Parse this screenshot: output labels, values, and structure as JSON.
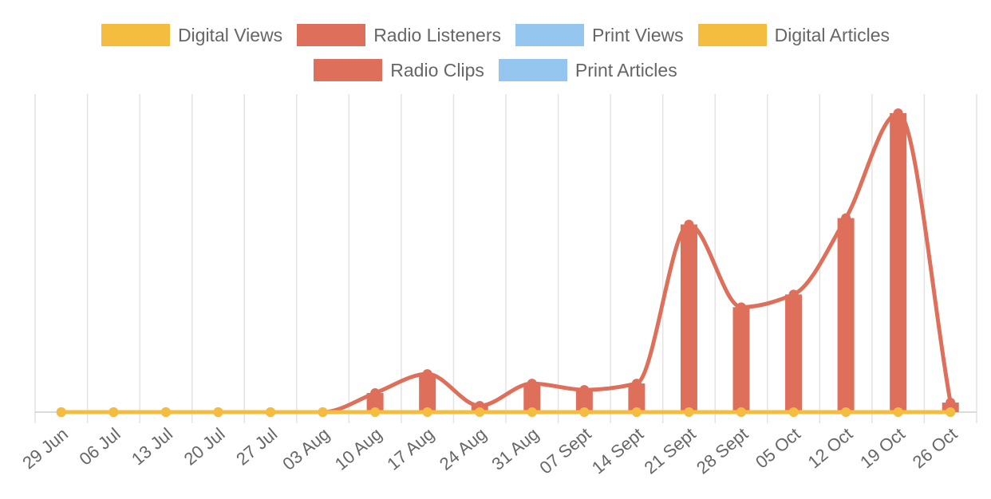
{
  "chart_data": {
    "type": "bar",
    "title": "",
    "xlabel": "",
    "ylabel": "",
    "grid": true,
    "legend_position": "top",
    "categories": [
      "29 Jun",
      "06 Jul",
      "13 Jul",
      "20 Jul",
      "27 Jul",
      "03 Aug",
      "10 Aug",
      "17 Aug",
      "24 Aug",
      "31 Aug",
      "07 Sept",
      "14 Sept",
      "21 Sept",
      "28 Sept",
      "05 Oct",
      "12 Oct",
      "19 Oct",
      "26 Oct"
    ],
    "series": [
      {
        "name": "Digital Views",
        "kind": "line",
        "color": "#f5bd3f",
        "values": [
          0,
          0,
          0,
          0,
          0,
          0,
          0,
          0,
          0,
          0,
          0,
          0,
          0,
          0,
          0,
          0,
          0,
          0
        ]
      },
      {
        "name": "Radio Listeners",
        "kind": "line",
        "color": "#de6f5b",
        "values": [
          0,
          0,
          0,
          0,
          0,
          0,
          6,
          12,
          2,
          9,
          7,
          9,
          59,
          33,
          37,
          61,
          94,
          3
        ]
      },
      {
        "name": "Print Views",
        "kind": "line",
        "color": "#94c6f0",
        "values": [
          0,
          0,
          0,
          0,
          0,
          0,
          0,
          0,
          0,
          0,
          0,
          0,
          0,
          0,
          0,
          0,
          0,
          0
        ]
      },
      {
        "name": "Digital Articles",
        "kind": "bar",
        "color": "#f5bd3f",
        "values": [
          0,
          0,
          0,
          0,
          0,
          0,
          0,
          0,
          0,
          0,
          0,
          0,
          0,
          0,
          0,
          0,
          0,
          0
        ]
      },
      {
        "name": "Radio Clips",
        "kind": "bar",
        "color": "#de6f5b",
        "values": [
          0,
          0,
          0,
          0,
          0,
          0,
          6,
          12,
          2,
          9,
          7,
          9,
          59,
          33,
          37,
          61,
          94,
          3
        ]
      },
      {
        "name": "Print Articles",
        "kind": "bar",
        "color": "#94c6f0",
        "values": [
          0,
          0,
          0,
          0,
          0,
          0,
          0,
          0,
          0,
          0,
          0,
          0,
          0,
          0,
          0,
          0,
          0,
          0
        ]
      }
    ],
    "legend_rows": [
      [
        "Digital Views",
        "Radio Listeners",
        "Print Views",
        "Digital Articles"
      ],
      [
        "Radio Clips",
        "Print Articles"
      ]
    ],
    "ylim": [
      0,
      100
    ]
  }
}
